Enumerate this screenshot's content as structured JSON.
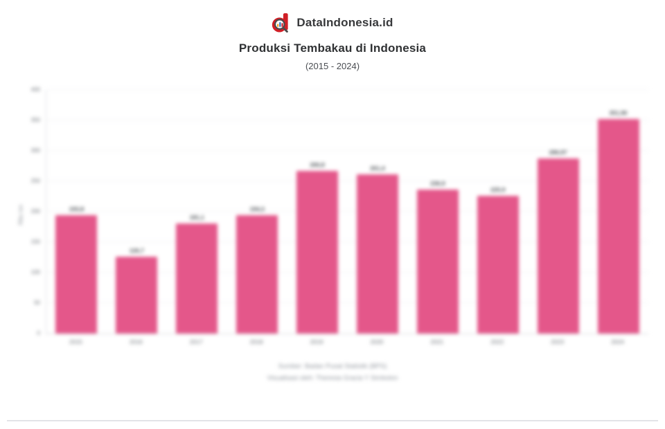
{
  "header": {
    "brand": "DataIndonesia.id",
    "title": "Produksi Tembakau di Indonesia",
    "subtitle": "(2015 - 2024)"
  },
  "chart_data": {
    "type": "bar",
    "title": "Produksi Tembakau di Indonesia",
    "subtitle": "(2015 - 2024)",
    "categories": [
      "2015",
      "2016",
      "2017",
      "2018",
      "2019",
      "2020",
      "2021",
      "2022",
      "2023",
      "2024"
    ],
    "values": [
      193.8,
      126.7,
      181.1,
      194.3,
      266.8,
      261.4,
      236.9,
      225.9,
      286.97,
      351.9
    ],
    "bar_labels": [
      "193,8",
      "126,7",
      "181,1",
      "194,3",
      "266,8",
      "261,4",
      "236,9",
      "225,9",
      "286,97",
      "351,90"
    ],
    "xlabel": "",
    "ylabel": "Ribu ton",
    "ylim": [
      0,
      400
    ],
    "yticks": [
      0,
      50,
      100,
      150,
      200,
      250,
      300,
      350,
      400
    ],
    "grid": true,
    "legend": null,
    "bar_color": "#E4578A"
  },
  "footer": {
    "source": "Sumber: Badan Pusat Statistik (BPS)",
    "credit": "Visualisasi oleh: Theresia Gracia Y Simbolon"
  },
  "colors": {
    "accent": "#E4578A",
    "logo_red": "#D01F26",
    "divider": "#E2E3E7"
  }
}
